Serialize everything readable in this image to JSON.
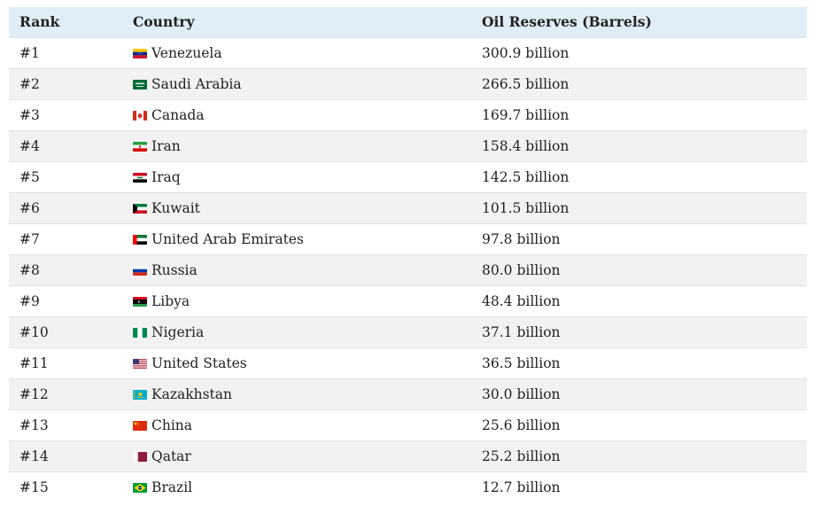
{
  "table": {
    "headers": {
      "rank": "Rank",
      "country": "Country",
      "reserves": "Oil Reserves (Barrels)"
    },
    "rows": [
      {
        "rank": "#1",
        "country": "Venezuela",
        "reserves": "300.9 billion",
        "flag": "venezuela-flag-icon"
      },
      {
        "rank": "#2",
        "country": "Saudi Arabia",
        "reserves": "266.5 billion",
        "flag": "saudi-arabia-flag-icon"
      },
      {
        "rank": "#3",
        "country": "Canada",
        "reserves": "169.7 billion",
        "flag": "canada-flag-icon"
      },
      {
        "rank": "#4",
        "country": "Iran",
        "reserves": "158.4 billion",
        "flag": "iran-flag-icon"
      },
      {
        "rank": "#5",
        "country": "Iraq",
        "reserves": "142.5 billion",
        "flag": "iraq-flag-icon"
      },
      {
        "rank": "#6",
        "country": "Kuwait",
        "reserves": "101.5 billion",
        "flag": "kuwait-flag-icon"
      },
      {
        "rank": "#7",
        "country": "United Arab Emirates",
        "reserves": "97.8 billion",
        "flag": "uae-flag-icon"
      },
      {
        "rank": "#8",
        "country": "Russia",
        "reserves": "80.0 billion",
        "flag": "russia-flag-icon"
      },
      {
        "rank": "#9",
        "country": "Libya",
        "reserves": "48.4 billion",
        "flag": "libya-flag-icon"
      },
      {
        "rank": "#10",
        "country": "Nigeria",
        "reserves": "37.1 billion",
        "flag": "nigeria-flag-icon"
      },
      {
        "rank": "#11",
        "country": "United States",
        "reserves": "36.5 billion",
        "flag": "united-states-flag-icon"
      },
      {
        "rank": "#12",
        "country": "Kazakhstan",
        "reserves": "30.0 billion",
        "flag": "kazakhstan-flag-icon"
      },
      {
        "rank": "#13",
        "country": "China",
        "reserves": "25.6 billion",
        "flag": "china-flag-icon"
      },
      {
        "rank": "#14",
        "country": "Qatar",
        "reserves": "25.2 billion",
        "flag": "qatar-flag-icon"
      },
      {
        "rank": "#15",
        "country": "Brazil",
        "reserves": "12.7 billion",
        "flag": "brazil-flag-icon"
      }
    ]
  },
  "colors": {
    "header_bg": "#dfeef7",
    "row_alt_bg": "#f2f2f2",
    "border": "#e1e1e1",
    "text": "#222222"
  }
}
